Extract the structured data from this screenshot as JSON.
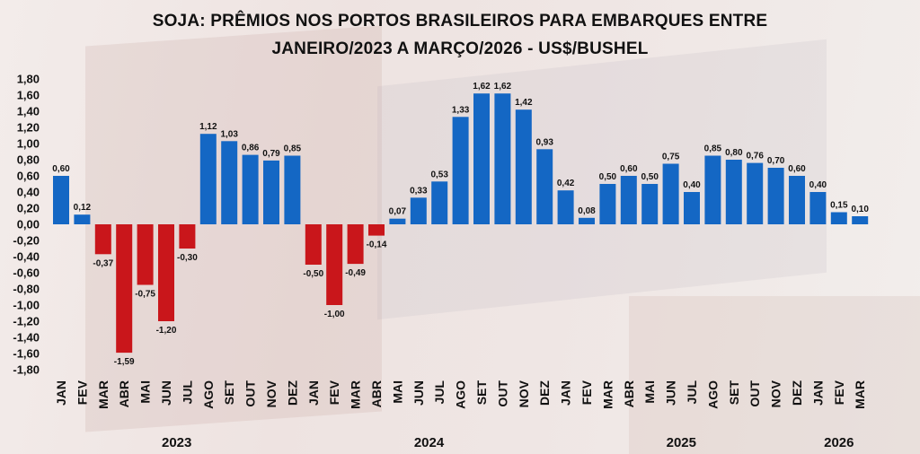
{
  "chart_data": {
    "type": "bar",
    "title_line1": "SOJA: PRÊMIOS NOS PORTOS BRASILEIROS PARA EMBARQUES ENTRE",
    "title_line2": "JANEIRO/2023 A MARÇO/2026 - US$/BUSHEL",
    "xlabel": "",
    "ylabel": "",
    "ylim": [
      -1.8,
      1.8
    ],
    "yticks": [
      "1,80",
      "1,60",
      "1,40",
      "1,20",
      "1,00",
      "0,80",
      "0,60",
      "0,40",
      "0,20",
      "0,00",
      "-0,20",
      "-0,40",
      "-0,60",
      "-0,80",
      "-1,00",
      "-1,20",
      "-1,40",
      "-1,60",
      "-1,80"
    ],
    "grid": false,
    "colors": {
      "positive": "#1467c4",
      "negative": "#c9161b"
    },
    "categories": [
      "JAN",
      "FEV",
      "MAR",
      "ABR",
      "MAI",
      "JUN",
      "JUL",
      "AGO",
      "SET",
      "OUT",
      "NOV",
      "DEZ",
      "JAN",
      "FEV",
      "MAR",
      "ABR",
      "MAI",
      "JUN",
      "JUL",
      "AGO",
      "SET",
      "OUT",
      "NOV",
      "DEZ",
      "JAN",
      "FEV",
      "MAR",
      "ABR",
      "MAI",
      "JUN",
      "JUL",
      "AGO",
      "SET",
      "OUT",
      "NOV",
      "DEZ",
      "JAN",
      "FEV",
      "MAR"
    ],
    "values": [
      0.6,
      0.12,
      -0.37,
      -1.59,
      -0.75,
      -1.2,
      -0.3,
      1.12,
      1.03,
      0.86,
      0.79,
      0.85,
      -0.5,
      -1.0,
      -0.49,
      -0.14,
      0.07,
      0.33,
      0.53,
      1.33,
      1.62,
      1.62,
      1.42,
      0.93,
      0.42,
      0.08,
      0.5,
      0.6,
      0.5,
      0.75,
      0.4,
      0.85,
      0.8,
      0.76,
      0.7,
      0.6,
      0.4,
      0.15,
      0.1
    ],
    "labels": [
      "0,60",
      "0,12",
      "-0,37",
      "-1,59",
      "-0,75",
      "-1,20",
      "-0,30",
      "1,12",
      "1,03",
      "0,86",
      "0,79",
      "0,85",
      "-0,50",
      "-1,00",
      "-0,49",
      "-0,14",
      "0,07",
      "0,33",
      "0,53",
      "1,33",
      "1,62",
      "1,62",
      "1,42",
      "0,93",
      "0,42",
      "0,08",
      "0,50",
      "0,60",
      "0,50",
      "0,75",
      "0,40",
      "0,85",
      "0,80",
      "0,76",
      "0,70",
      "0,60",
      "0,40",
      "0,15",
      "0,10"
    ],
    "years": [
      {
        "label": "2023",
        "count": 12
      },
      {
        "label": "2024",
        "count": 12
      },
      {
        "label": "2025",
        "count": 12
      },
      {
        "label": "2026",
        "count": 3
      }
    ]
  }
}
